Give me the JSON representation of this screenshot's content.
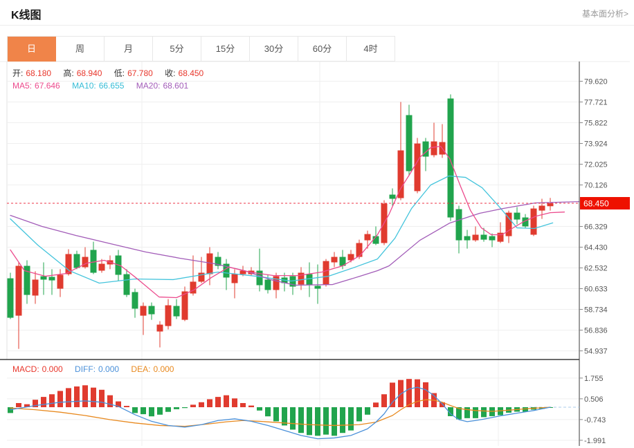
{
  "header": {
    "title": "K线图",
    "link": "基本面分析>"
  },
  "tabs": {
    "items": [
      "日",
      "周",
      "月",
      "5分",
      "15分",
      "30分",
      "60分",
      "4时"
    ],
    "active_index": 0
  },
  "ohlc": {
    "open_label": "开:",
    "open": "68.180",
    "high_label": "高:",
    "high": "68.940",
    "low_label": "低:",
    "low": "67.780",
    "close_label": "收:",
    "close": "68.450"
  },
  "ma_legend": {
    "ma5_label": "MA5:",
    "ma5": "67.646",
    "ma10_label": "MA10:",
    "ma10": "66.655",
    "ma20_label": "MA20:",
    "ma20": "68.601"
  },
  "macd_legend": {
    "macd_label": "MACD:",
    "macd": "0.000",
    "diff_label": "DIFF:",
    "diff": "0.000",
    "dea_label": "DEA:",
    "dea": "0.000"
  },
  "colors": {
    "up": "#e03b2f",
    "down": "#21a44d",
    "ma5": "#ec4a8c",
    "ma10": "#44c4dc",
    "ma20": "#a25cb8",
    "diff": "#4a90d9",
    "dea": "#e8891e",
    "tab_active": "#f08449",
    "price_tag": "#ee1100",
    "dashed_line": "#ee3344",
    "grid": "#efefef",
    "axis": "#3a3a3a",
    "axis_text": "#555"
  },
  "chart_data": {
    "type": "candlestick",
    "title": "K线图 (daily K-line with MA5/MA10/MA20 and MACD)",
    "price_axis": {
      "labels": [
        "79.620",
        "77.721",
        "75.822",
        "73.924",
        "72.025",
        "70.126",
        "66.329",
        "64.430",
        "62.532",
        "60.633",
        "58.734",
        "56.836",
        "54.937"
      ],
      "current_price_tag": "68.450",
      "min": 54.937,
      "max": 79.62
    },
    "candles": [
      [
        61.58,
        62.09,
        57.85,
        57.97
      ],
      [
        58.16,
        63.04,
        55.12,
        62.72
      ],
      [
        62.72,
        63.23,
        59.24,
        60.06
      ],
      [
        60.0,
        62.22,
        59.24,
        61.46
      ],
      [
        61.77,
        63.04,
        60.06,
        61.46
      ],
      [
        61.71,
        62.41,
        60.06,
        61.39
      ],
      [
        60.63,
        62.41,
        59.87,
        61.9
      ],
      [
        61.96,
        64.24,
        61.83,
        63.8
      ],
      [
        63.8,
        64.11,
        62.41,
        62.53
      ],
      [
        62.6,
        64.43,
        62.47,
        63.54
      ],
      [
        64.18,
        64.93,
        61.96,
        62.09
      ],
      [
        62.28,
        63.35,
        62.09,
        62.91
      ],
      [
        62.85,
        63.67,
        62.41,
        63.23
      ],
      [
        63.67,
        64.18,
        61.33,
        61.9
      ],
      [
        61.96,
        62.41,
        59.87,
        60.06
      ],
      [
        60.32,
        60.63,
        57.97,
        58.8
      ],
      [
        58.16,
        59.37,
        56.39,
        59.05
      ],
      [
        59.05,
        59.37,
        57.78,
        58.29
      ],
      [
        56.71,
        57.66,
        55.25,
        57.34
      ],
      [
        57.21,
        59.68,
        56.9,
        59.11
      ],
      [
        59.05,
        59.68,
        57.85,
        58.1
      ],
      [
        57.78,
        60.82,
        57.66,
        60.38
      ],
      [
        60.19,
        63.67,
        60.0,
        61.27
      ],
      [
        61.27,
        63.54,
        61.14,
        62.09
      ],
      [
        61.96,
        64.43,
        60.95,
        63.86
      ],
      [
        63.54,
        63.99,
        62.41,
        62.72
      ],
      [
        62.91,
        63.35,
        60.51,
        61.65
      ],
      [
        61.14,
        62.41,
        59.75,
        61.96
      ],
      [
        61.96,
        62.72,
        61.77,
        62.28
      ],
      [
        61.96,
        62.6,
        61.83,
        62.28
      ],
      [
        62.28,
        64.3,
        60.38,
        60.95
      ],
      [
        61.46,
        61.9,
        60.19,
        60.51
      ],
      [
        60.51,
        62.09,
        59.75,
        61.77
      ],
      [
        61.65,
        62.09,
        60.38,
        61.14
      ],
      [
        61.77,
        62.09,
        60.06,
        60.82
      ],
      [
        61.01,
        62.6,
        60.51,
        62.09
      ],
      [
        61.96,
        63.04,
        59.87,
        60.95
      ],
      [
        60.89,
        62.85,
        59.24,
        60.63
      ],
      [
        61.01,
        63.35,
        60.82,
        63.16
      ],
      [
        63.04,
        63.99,
        62.6,
        63.54
      ],
      [
        63.54,
        64.18,
        62.41,
        62.72
      ],
      [
        63.23,
        64.18,
        63.04,
        63.8
      ],
      [
        63.54,
        65.12,
        63.35,
        64.81
      ],
      [
        65.06,
        65.94,
        64.3,
        65.63
      ],
      [
        65.44,
        66.33,
        64.62,
        64.74
      ],
      [
        64.81,
        68.73,
        64.62,
        68.42
      ],
      [
        69.24,
        69.81,
        68.23,
        68.86
      ],
      [
        68.92,
        77.72,
        68.73,
        73.29
      ],
      [
        76.52,
        77.47,
        70.95,
        71.39
      ],
      [
        69.56,
        74.43,
        69.37,
        73.92
      ],
      [
        74.11,
        74.43,
        71.39,
        72.72
      ],
      [
        72.85,
        75.82,
        72.66,
        74.11
      ],
      [
        72.91,
        75.7,
        72.6,
        74.05
      ],
      [
        78.04,
        78.42,
        66.83,
        67.15
      ],
      [
        67.91,
        68.23,
        63.86,
        65.06
      ],
      [
        65.44,
        66.01,
        64.3,
        65.06
      ],
      [
        65.06,
        66.33,
        64.93,
        65.57
      ],
      [
        65.57,
        66.2,
        64.93,
        65.12
      ],
      [
        65.44,
        65.69,
        64.43,
        65.06
      ],
      [
        64.93,
        66.71,
        64.81,
        65.75
      ],
      [
        65.44,
        67.78,
        64.81,
        67.59
      ],
      [
        67.59,
        68.1,
        66.52,
        66.96
      ],
      [
        67.15,
        67.46,
        66.2,
        66.33
      ],
      [
        65.57,
        68.23,
        65.44,
        67.97
      ],
      [
        67.78,
        68.86,
        67.02,
        68.23
      ],
      [
        68.18,
        68.94,
        67.78,
        68.45
      ]
    ],
    "overlays": {
      "ma5": [
        [
          0,
          64.18
        ],
        [
          1.7,
          62.28
        ],
        [
          4.2,
          61.77
        ],
        [
          6.7,
          62.02
        ],
        [
          9.2,
          62.97
        ],
        [
          11.3,
          63.23
        ],
        [
          13.3,
          62.72
        ],
        [
          15.4,
          61.46
        ],
        [
          17.9,
          59.87
        ],
        [
          20,
          59.81
        ],
        [
          22.1,
          60.51
        ],
        [
          24.2,
          61.65
        ],
        [
          26.3,
          62.6
        ],
        [
          28.8,
          62.15
        ],
        [
          31.7,
          61.83
        ],
        [
          34.6,
          61.83
        ],
        [
          37.5,
          62.15
        ],
        [
          40,
          62.72
        ],
        [
          42.1,
          63.67
        ],
        [
          44.2,
          65.57
        ],
        [
          45.6,
          67.46
        ],
        [
          46.9,
          69.68
        ],
        [
          48.1,
          71.13
        ],
        [
          49.3,
          72.66
        ],
        [
          50.6,
          73.54
        ],
        [
          51.8,
          73.67
        ],
        [
          52.9,
          72.53
        ],
        [
          54.2,
          70.0
        ],
        [
          55.4,
          67.78
        ],
        [
          56.7,
          66.2
        ],
        [
          57.9,
          65.57
        ],
        [
          59.2,
          65.57
        ],
        [
          60.4,
          66.14
        ],
        [
          61.8,
          66.77
        ],
        [
          63.3,
          67.27
        ],
        [
          65,
          67.59
        ],
        [
          66.7,
          67.646
        ]
      ],
      "ma10": [
        [
          0,
          67.02
        ],
        [
          3.3,
          64.62
        ],
        [
          7.1,
          62.28
        ],
        [
          10.7,
          61.14
        ],
        [
          15,
          61.52
        ],
        [
          19.6,
          61.46
        ],
        [
          25,
          62.15
        ],
        [
          29.6,
          61.77
        ],
        [
          33.8,
          61.33
        ],
        [
          38.3,
          61.77
        ],
        [
          41.5,
          62.6
        ],
        [
          44.2,
          63.35
        ],
        [
          46.3,
          65.25
        ],
        [
          48.3,
          67.97
        ],
        [
          50.6,
          70.12
        ],
        [
          52.8,
          70.95
        ],
        [
          54.8,
          70.82
        ],
        [
          56.8,
          69.87
        ],
        [
          58.9,
          68.1
        ],
        [
          61,
          66.2
        ],
        [
          63.1,
          66.14
        ],
        [
          65.3,
          66.655
        ]
      ],
      "ma20": [
        [
          0,
          67.34
        ],
        [
          3.8,
          66.33
        ],
        [
          7.9,
          65.5
        ],
        [
          12.1,
          64.74
        ],
        [
          16.3,
          63.99
        ],
        [
          20.4,
          63.42
        ],
        [
          24.6,
          62.91
        ],
        [
          28.2,
          62.28
        ],
        [
          31.3,
          61.46
        ],
        [
          34.3,
          60.95
        ],
        [
          38.8,
          61.01
        ],
        [
          42.1,
          61.77
        ],
        [
          44.2,
          62.28
        ],
        [
          45.6,
          62.72
        ],
        [
          49.3,
          65.06
        ],
        [
          52.9,
          66.64
        ],
        [
          56.5,
          67.53
        ],
        [
          59.3,
          67.97
        ],
        [
          63.2,
          68.48
        ],
        [
          68.5,
          68.601
        ]
      ]
    },
    "macd": {
      "axis_labels": [
        "1.755",
        "0.506",
        "-0.743",
        "-1.991"
      ],
      "histogram": [
        -0.35,
        0.25,
        0.18,
        0.45,
        0.62,
        0.78,
        0.98,
        1.15,
        1.25,
        1.32,
        1.18,
        1.05,
        0.72,
        0.35,
        0.08,
        -0.35,
        -0.42,
        -0.55,
        -0.45,
        -0.28,
        -0.12,
        -0.05,
        0.15,
        0.3,
        0.48,
        0.62,
        0.72,
        0.53,
        0.25,
        0.1,
        -0.2,
        -0.55,
        -0.85,
        -1.1,
        -1.35,
        -1.55,
        -1.68,
        -1.72,
        -1.65,
        -1.72,
        -1.55,
        -1.4,
        -0.85,
        -0.45,
        0.28,
        0.78,
        1.48,
        1.64,
        1.7,
        1.68,
        1.5,
        0.85,
        0.3,
        -0.54,
        -0.73,
        -0.66,
        -0.66,
        -0.6,
        -0.54,
        -0.48,
        -0.33,
        -0.27,
        -0.27,
        -0.15,
        -0.1,
        -0.02
      ],
      "diff": [
        [
          0,
          -0.15
        ],
        [
          3,
          0.1
        ],
        [
          6,
          0.3
        ],
        [
          9,
          0.38
        ],
        [
          11,
          0.3
        ],
        [
          13,
          0.05
        ],
        [
          15,
          -0.45
        ],
        [
          17,
          -0.85
        ],
        [
          19,
          -1.1
        ],
        [
          21,
          -1.2
        ],
        [
          23,
          -1.05
        ],
        [
          25,
          -0.8
        ],
        [
          27,
          -0.7
        ],
        [
          29,
          -0.85
        ],
        [
          31,
          -1.1
        ],
        [
          33,
          -1.4
        ],
        [
          35,
          -1.7
        ],
        [
          37,
          -1.9
        ],
        [
          39,
          -1.85
        ],
        [
          41,
          -1.7
        ],
        [
          43,
          -1.3
        ],
        [
          44,
          -0.9
        ],
        [
          45,
          -0.4
        ],
        [
          46,
          0.3
        ],
        [
          47,
          0.8
        ],
        [
          48,
          1.1
        ],
        [
          49,
          1.2
        ],
        [
          50,
          1.05
        ],
        [
          51,
          0.7
        ],
        [
          52,
          0.2
        ],
        [
          53,
          -0.4
        ],
        [
          54,
          -0.75
        ],
        [
          55,
          -0.87
        ],
        [
          56,
          -0.8
        ],
        [
          57,
          -0.72
        ],
        [
          58,
          -0.62
        ],
        [
          59,
          -0.52
        ],
        [
          60,
          -0.44
        ],
        [
          61,
          -0.36
        ],
        [
          62,
          -0.28
        ],
        [
          63,
          -0.2
        ],
        [
          64,
          -0.1
        ],
        [
          65,
          0.0
        ]
      ],
      "dea": [
        [
          0,
          -0.05
        ],
        [
          3,
          -0.15
        ],
        [
          6,
          -0.3
        ],
        [
          9,
          -0.5
        ],
        [
          12,
          -0.75
        ],
        [
          15,
          -0.95
        ],
        [
          18,
          -1.1
        ],
        [
          21,
          -1.15
        ],
        [
          24,
          -1.0
        ],
        [
          26,
          -0.88
        ],
        [
          28,
          -0.8
        ],
        [
          30,
          -0.85
        ],
        [
          33,
          -0.95
        ],
        [
          36,
          -1.05
        ],
        [
          39,
          -1.1
        ],
        [
          42,
          -1.05
        ],
        [
          44,
          -0.9
        ],
        [
          46,
          -0.5
        ],
        [
          47,
          -0.15
        ],
        [
          48,
          0.15
        ],
        [
          49,
          0.35
        ],
        [
          50,
          0.45
        ],
        [
          51,
          0.42
        ],
        [
          52,
          0.3
        ],
        [
          53,
          0.1
        ],
        [
          54,
          -0.08
        ],
        [
          56,
          -0.2
        ],
        [
          58,
          -0.25
        ],
        [
          60,
          -0.18
        ],
        [
          62,
          -0.1
        ],
        [
          64,
          -0.03
        ],
        [
          65,
          0.0
        ]
      ]
    }
  }
}
